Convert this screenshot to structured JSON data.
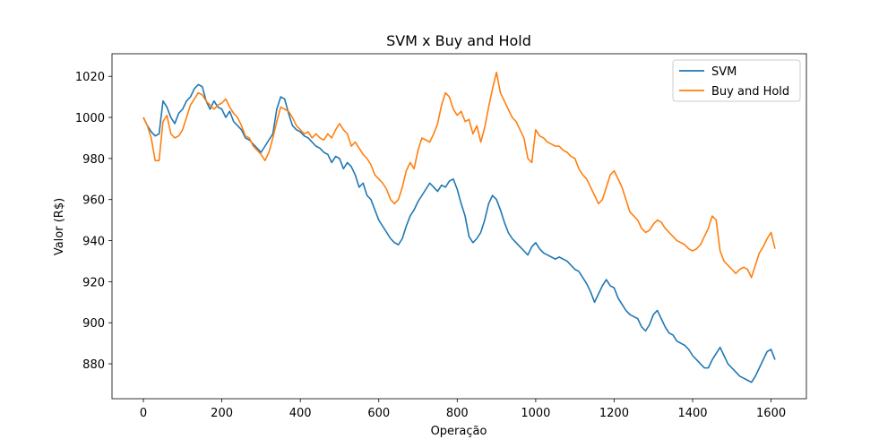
{
  "chart_data": {
    "type": "line",
    "title": "SVM x Buy and Hold",
    "xlabel": "Operação",
    "ylabel": "Valor (R$)",
    "xlim": [
      -80,
      1690
    ],
    "ylim": [
      863,
      1031
    ],
    "xticks": [
      0,
      200,
      400,
      600,
      800,
      1000,
      1200,
      1400,
      1600
    ],
    "yticks": [
      880,
      900,
      920,
      940,
      960,
      980,
      1000,
      1020
    ],
    "grid": false,
    "legend_position": "top-right",
    "series": [
      {
        "name": "SVM",
        "color": "#1f77b4",
        "x": [
          0,
          10,
          20,
          30,
          40,
          50,
          60,
          70,
          80,
          90,
          100,
          110,
          120,
          130,
          140,
          150,
          160,
          170,
          180,
          190,
          200,
          210,
          220,
          230,
          240,
          250,
          260,
          270,
          280,
          290,
          300,
          310,
          320,
          330,
          340,
          350,
          360,
          370,
          380,
          390,
          400,
          410,
          420,
          430,
          440,
          450,
          460,
          470,
          480,
          490,
          500,
          510,
          520,
          530,
          540,
          550,
          560,
          570,
          580,
          590,
          600,
          610,
          620,
          630,
          640,
          650,
          660,
          670,
          680,
          690,
          700,
          710,
          720,
          730,
          740,
          750,
          760,
          770,
          780,
          790,
          800,
          810,
          820,
          830,
          840,
          850,
          860,
          870,
          880,
          890,
          900,
          910,
          920,
          930,
          940,
          950,
          960,
          970,
          980,
          990,
          1000,
          1010,
          1020,
          1030,
          1040,
          1050,
          1060,
          1070,
          1080,
          1090,
          1100,
          1110,
          1120,
          1130,
          1140,
          1150,
          1160,
          1170,
          1180,
          1190,
          1200,
          1210,
          1220,
          1230,
          1240,
          1250,
          1260,
          1270,
          1280,
          1290,
          1300,
          1310,
          1320,
          1330,
          1340,
          1350,
          1360,
          1370,
          1380,
          1390,
          1400,
          1410,
          1420,
          1430,
          1440,
          1450,
          1460,
          1470,
          1480,
          1490,
          1500,
          1510,
          1520,
          1530,
          1540,
          1550,
          1560,
          1570,
          1580,
          1590,
          1600,
          1610
        ],
        "values": [
          1000,
          996,
          993,
          991,
          992,
          1008,
          1005,
          1000,
          997,
          1002,
          1004,
          1008,
          1010,
          1014,
          1016,
          1015,
          1008,
          1004,
          1008,
          1005,
          1004,
          1000,
          1003,
          998,
          996,
          994,
          990,
          989,
          987,
          985,
          983,
          986,
          989,
          992,
          1004,
          1010,
          1009,
          1002,
          996,
          994,
          993,
          991,
          990,
          988,
          986,
          985,
          983,
          982,
          978,
          981,
          980,
          975,
          978,
          976,
          972,
          966,
          968,
          962,
          960,
          955,
          950,
          947,
          944,
          941,
          939,
          938,
          941,
          947,
          952,
          955,
          959,
          962,
          965,
          968,
          966,
          964,
          967,
          966,
          969,
          970,
          965,
          958,
          952,
          942,
          939,
          941,
          944,
          950,
          958,
          962,
          960,
          955,
          949,
          944,
          941,
          939,
          937,
          935,
          933,
          937,
          939,
          936,
          934,
          933,
          932,
          931,
          932,
          931,
          930,
          928,
          926,
          925,
          922,
          919,
          915,
          910,
          914,
          918,
          921,
          918,
          917,
          912,
          909,
          906,
          904,
          903,
          902,
          898,
          896,
          899,
          904,
          906,
          902,
          898,
          895,
          894,
          891,
          890,
          889,
          887,
          884,
          882,
          880,
          878,
          878,
          882,
          885,
          888,
          884,
          880,
          878,
          876,
          874,
          873,
          872,
          871,
          874,
          878,
          882,
          886,
          887,
          882
        ]
      },
      {
        "name": "Buy and Hold",
        "color": "#ff7f0e",
        "x": [
          0,
          10,
          20,
          30,
          40,
          50,
          60,
          70,
          80,
          90,
          100,
          110,
          120,
          130,
          140,
          150,
          160,
          170,
          180,
          190,
          200,
          210,
          220,
          230,
          240,
          250,
          260,
          270,
          280,
          290,
          300,
          310,
          320,
          330,
          340,
          350,
          360,
          370,
          380,
          390,
          400,
          410,
          420,
          430,
          440,
          450,
          460,
          470,
          480,
          490,
          500,
          510,
          520,
          530,
          540,
          550,
          560,
          570,
          580,
          590,
          600,
          610,
          620,
          630,
          640,
          650,
          660,
          670,
          680,
          690,
          700,
          710,
          720,
          730,
          740,
          750,
          760,
          770,
          780,
          790,
          800,
          810,
          820,
          830,
          840,
          850,
          860,
          870,
          880,
          890,
          900,
          910,
          920,
          930,
          940,
          950,
          960,
          970,
          980,
          990,
          1000,
          1010,
          1020,
          1030,
          1040,
          1050,
          1060,
          1070,
          1080,
          1090,
          1100,
          1110,
          1120,
          1130,
          1140,
          1150,
          1160,
          1170,
          1180,
          1190,
          1200,
          1210,
          1220,
          1230,
          1240,
          1250,
          1260,
          1270,
          1280,
          1290,
          1300,
          1310,
          1320,
          1330,
          1340,
          1350,
          1360,
          1370,
          1380,
          1390,
          1400,
          1410,
          1420,
          1430,
          1440,
          1450,
          1460,
          1470,
          1480,
          1490,
          1500,
          1510,
          1520,
          1530,
          1540,
          1550,
          1560,
          1570,
          1580,
          1590,
          1600,
          1610
        ],
        "values": [
          1000,
          996,
          990,
          979,
          979,
          998,
          1001,
          992,
          990,
          991,
          994,
          1000,
          1006,
          1009,
          1012,
          1011,
          1008,
          1006,
          1004,
          1006,
          1007,
          1009,
          1005,
          1002,
          1000,
          996,
          991,
          990,
          986,
          984,
          982,
          979,
          983,
          990,
          998,
          1005,
          1004,
          1003,
          1000,
          996,
          994,
          992,
          993,
          990,
          992,
          990,
          989,
          992,
          990,
          994,
          997,
          994,
          992,
          986,
          988,
          985,
          982,
          980,
          977,
          972,
          970,
          968,
          965,
          960,
          958,
          960,
          966,
          974,
          978,
          975,
          984,
          990,
          989,
          988,
          992,
          997,
          1006,
          1012,
          1010,
          1004,
          1001,
          1003,
          998,
          999,
          992,
          996,
          988,
          995,
          1005,
          1014,
          1022,
          1012,
          1008,
          1004,
          1000,
          998,
          994,
          990,
          980,
          978,
          994,
          991,
          990,
          988,
          987,
          986,
          986,
          984,
          983,
          981,
          980,
          975,
          972,
          970,
          966,
          962,
          958,
          960,
          966,
          972,
          974,
          970,
          966,
          960,
          954,
          952,
          950,
          946,
          944,
          945,
          948,
          950,
          949,
          946,
          944,
          942,
          940,
          939,
          938,
          936,
          935,
          936,
          938,
          942,
          946,
          952,
          950,
          935,
          930,
          928,
          926,
          924,
          926,
          927,
          926,
          922,
          928,
          934,
          937,
          941,
          944,
          936
        ]
      }
    ]
  }
}
